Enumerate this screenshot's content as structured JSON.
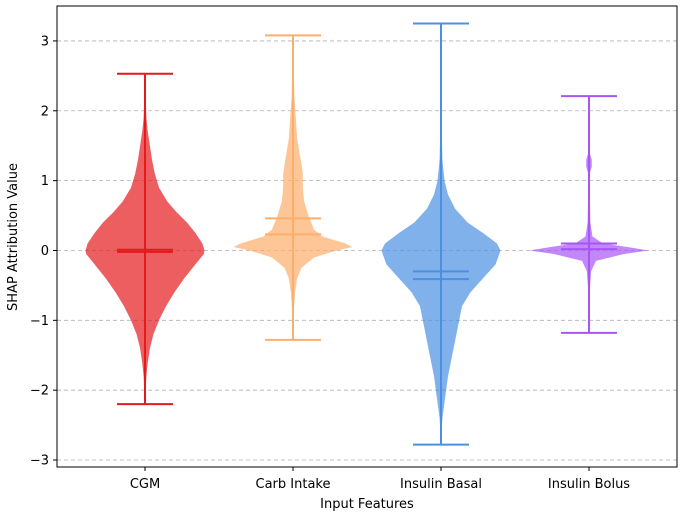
{
  "chart_data": {
    "type": "violin",
    "title": "",
    "xlabel": "Input Features",
    "ylabel": "SHAP Attribution Value",
    "ylim": [
      -3.1,
      3.5
    ],
    "yticks": [
      -3,
      -2,
      -1,
      0,
      1,
      2,
      3
    ],
    "ytick_labels": [
      "−3",
      "−2",
      "−1",
      "0",
      "1",
      "2",
      "3"
    ],
    "grid": {
      "y": true,
      "style": "dashed"
    },
    "categories": [
      "CGM",
      "Carb Intake",
      "Insulin Basal",
      "Insulin Bolus"
    ],
    "series": [
      {
        "category": "CGM",
        "color": "#e41a1c",
        "min": -2.2,
        "max": 2.53,
        "mean": 0.01,
        "median": -0.02,
        "density": [
          [
            -2.2,
            0.0
          ],
          [
            -1.8,
            0.02
          ],
          [
            -1.6,
            0.04
          ],
          [
            -1.4,
            0.07
          ],
          [
            -1.2,
            0.12
          ],
          [
            -1.0,
            0.2
          ],
          [
            -0.8,
            0.3
          ],
          [
            -0.6,
            0.42
          ],
          [
            -0.4,
            0.56
          ],
          [
            -0.2,
            0.72
          ],
          [
            -0.05,
            0.84
          ],
          [
            0.0,
            0.85
          ],
          [
            0.1,
            0.82
          ],
          [
            0.25,
            0.72
          ],
          [
            0.4,
            0.6
          ],
          [
            0.55,
            0.45
          ],
          [
            0.7,
            0.32
          ],
          [
            0.9,
            0.2
          ],
          [
            1.1,
            0.14
          ],
          [
            1.3,
            0.1
          ],
          [
            1.5,
            0.07
          ],
          [
            1.7,
            0.04
          ],
          [
            1.9,
            0.02
          ],
          [
            2.2,
            0.01
          ],
          [
            2.53,
            0.0
          ]
        ]
      },
      {
        "category": "Carb Intake",
        "color": "#fdae6b",
        "min": -1.28,
        "max": 3.08,
        "mean": 0.46,
        "median": 0.23,
        "density": [
          [
            -1.28,
            0.0
          ],
          [
            -0.9,
            0.01
          ],
          [
            -0.6,
            0.03
          ],
          [
            -0.4,
            0.06
          ],
          [
            -0.25,
            0.12
          ],
          [
            -0.1,
            0.3
          ],
          [
            0.0,
            0.62
          ],
          [
            0.05,
            0.85
          ],
          [
            0.1,
            0.75
          ],
          [
            0.2,
            0.42
          ],
          [
            0.3,
            0.3
          ],
          [
            0.5,
            0.22
          ],
          [
            0.7,
            0.16
          ],
          [
            0.9,
            0.14
          ],
          [
            1.1,
            0.14
          ],
          [
            1.3,
            0.11
          ],
          [
            1.6,
            0.06
          ],
          [
            1.9,
            0.04
          ],
          [
            2.2,
            0.02
          ],
          [
            2.6,
            0.01
          ],
          [
            3.08,
            0.0
          ]
        ]
      },
      {
        "category": "Insulin Basal",
        "color": "#4a90e2",
        "min": -2.78,
        "max": 3.25,
        "mean": -0.3,
        "median": -0.41,
        "density": [
          [
            -2.78,
            0.0
          ],
          [
            -2.4,
            0.02
          ],
          [
            -2.1,
            0.06
          ],
          [
            -1.8,
            0.1
          ],
          [
            -1.6,
            0.14
          ],
          [
            -1.4,
            0.18
          ],
          [
            -1.2,
            0.22
          ],
          [
            -1.0,
            0.26
          ],
          [
            -0.8,
            0.3
          ],
          [
            -0.6,
            0.42
          ],
          [
            -0.4,
            0.6
          ],
          [
            -0.2,
            0.78
          ],
          [
            0.0,
            0.85
          ],
          [
            0.1,
            0.8
          ],
          [
            0.25,
            0.6
          ],
          [
            0.4,
            0.38
          ],
          [
            0.6,
            0.2
          ],
          [
            0.8,
            0.1
          ],
          [
            1.0,
            0.05
          ],
          [
            1.3,
            0.02
          ],
          [
            1.8,
            0.01
          ],
          [
            3.25,
            0.0
          ]
        ]
      },
      {
        "category": "Insulin Bolus",
        "color": "#a855f7",
        "min": -1.18,
        "max": 2.21,
        "mean": 0.1,
        "median": 0.02,
        "density": [
          [
            -1.18,
            0.0
          ],
          [
            -0.6,
            0.01
          ],
          [
            -0.3,
            0.03
          ],
          [
            -0.15,
            0.1
          ],
          [
            -0.05,
            0.5
          ],
          [
            0.0,
            0.85
          ],
          [
            0.05,
            0.55
          ],
          [
            0.1,
            0.2
          ],
          [
            0.2,
            0.05
          ],
          [
            0.4,
            0.02
          ],
          [
            0.9,
            0.01
          ],
          [
            1.1,
            0.01
          ],
          [
            1.2,
            0.04
          ],
          [
            1.3,
            0.04
          ],
          [
            1.4,
            0.01
          ],
          [
            1.8,
            0.005
          ],
          [
            2.21,
            0.0
          ]
        ]
      }
    ]
  }
}
